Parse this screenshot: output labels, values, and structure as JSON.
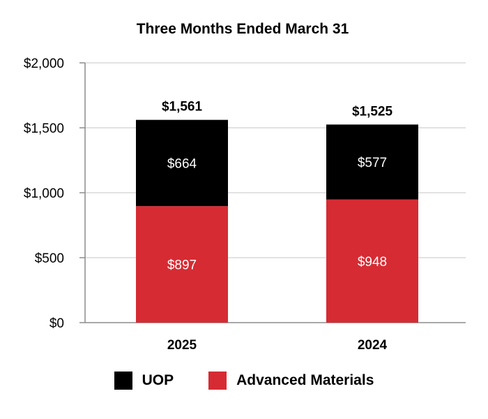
{
  "chart_data": {
    "type": "bar",
    "stacked": true,
    "title": "Three Months Ended March 31",
    "categories": [
      "2025",
      "2024"
    ],
    "series": [
      {
        "name": "Advanced Materials",
        "color": "#d62b33",
        "values": [
          897,
          948
        ],
        "labels": [
          "$897",
          "$948"
        ]
      },
      {
        "name": "UOP",
        "color": "#000000",
        "values": [
          664,
          577
        ],
        "labels": [
          "$664",
          "$577"
        ]
      }
    ],
    "totals": [
      1561,
      1525
    ],
    "total_labels": [
      "$1,561",
      "$1,525"
    ],
    "ylim": [
      0,
      2000
    ],
    "yticks": [
      0,
      500,
      1000,
      1500,
      2000
    ],
    "ytick_labels": [
      "$0",
      "$500",
      "$1,000",
      "$1,500",
      "$2,000"
    ],
    "xlabel": "",
    "ylabel": "",
    "grid": true,
    "legend": {
      "position": "bottom",
      "items": [
        {
          "label": "UOP",
          "color": "#000000"
        },
        {
          "label": "Advanced Materials",
          "color": "#d62b33"
        }
      ]
    }
  }
}
